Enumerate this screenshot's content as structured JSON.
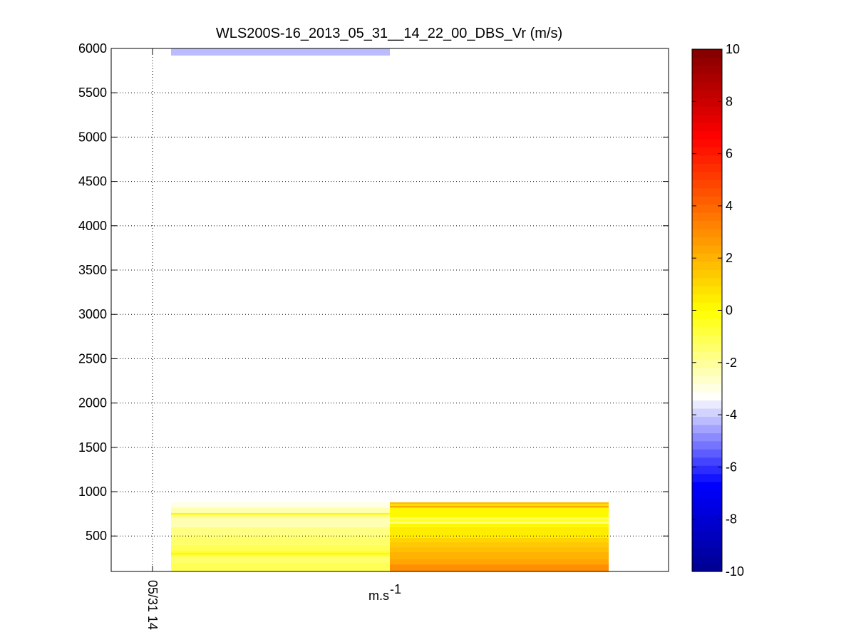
{
  "chart_data": {
    "type": "heatmap",
    "title": "WLS200S-16_2013_05_31__14_22_00_DBS_Vr (m/s)",
    "xlabel": "m.s",
    "xlabel_exponent": "-1",
    "ylabel": "",
    "ylim": [
      100,
      6000
    ],
    "yticks": [
      500,
      1000,
      1500,
      2000,
      2500,
      3000,
      3500,
      4000,
      4500,
      5000,
      5500,
      6000
    ],
    "xticks": [
      "05/31 14"
    ],
    "grid": true,
    "colorbar": {
      "range": [
        -10,
        10
      ],
      "ticks": [
        -10,
        -8,
        -6,
        -4,
        -2,
        0,
        2,
        4,
        6,
        8,
        10
      ],
      "colors": [
        "#00008f",
        "#0000ff",
        "#ffffff",
        "#ffff00",
        "#ff8000",
        "#ff0000",
        "#800000"
      ]
    },
    "columns": [
      {
        "bands": [
          {
            "y0": 5920,
            "y1": 6000,
            "value": -4.2
          },
          {
            "y0": 820,
            "y1": 880,
            "value": -3.0
          },
          {
            "y0": 760,
            "y1": 820,
            "value": -2.2
          },
          {
            "y0": 740,
            "y1": 760,
            "value": 0
          },
          {
            "y0": 700,
            "y1": 740,
            "value": -1.8
          },
          {
            "y0": 600,
            "y1": 700,
            "value": -2.3
          },
          {
            "y0": 500,
            "y1": 600,
            "value": -1.8
          },
          {
            "y0": 400,
            "y1": 500,
            "value": -1.5
          },
          {
            "y0": 330,
            "y1": 400,
            "value": -1.2
          },
          {
            "y0": 310,
            "y1": 330,
            "value": -0.4
          },
          {
            "y0": 290,
            "y1": 310,
            "value": 0
          },
          {
            "y0": 270,
            "y1": 290,
            "value": -0.6
          },
          {
            "y0": 200,
            "y1": 270,
            "value": -1.4
          },
          {
            "y0": 100,
            "y1": 200,
            "value": -1.2
          }
        ]
      },
      {
        "bands": [
          {
            "y0": 860,
            "y1": 880,
            "value": 1.8
          },
          {
            "y0": 840,
            "y1": 860,
            "value": 0.8
          },
          {
            "y0": 820,
            "y1": 840,
            "value": 2.2
          },
          {
            "y0": 710,
            "y1": 820,
            "value": 0
          },
          {
            "y0": 690,
            "y1": 710,
            "value": -1.0
          },
          {
            "y0": 660,
            "y1": 690,
            "value": -0.5
          },
          {
            "y0": 640,
            "y1": 660,
            "value": -1.6
          },
          {
            "y0": 600,
            "y1": 640,
            "value": 0.3
          },
          {
            "y0": 480,
            "y1": 600,
            "value": 0.5
          },
          {
            "y0": 430,
            "y1": 480,
            "value": 1.1
          },
          {
            "y0": 380,
            "y1": 430,
            "value": 1.4
          },
          {
            "y0": 320,
            "y1": 380,
            "value": 1.8
          },
          {
            "y0": 240,
            "y1": 320,
            "value": 2.1
          },
          {
            "y0": 180,
            "y1": 240,
            "value": 2.4
          },
          {
            "y0": 100,
            "y1": 180,
            "value": 2.9
          }
        ]
      }
    ]
  }
}
